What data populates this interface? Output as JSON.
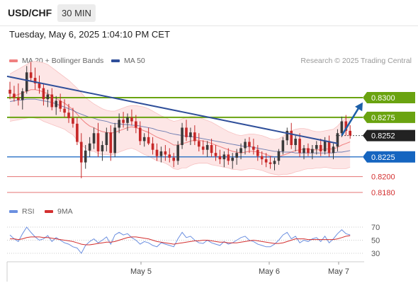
{
  "header": {
    "pair": "USD/CHF",
    "timeframe": "30 MIN",
    "datetime": "Tuesday, May 6, 2025 1:04:10 PM CET"
  },
  "legend": {
    "ma_bb_label": "MA 20 + Bollinger Bands",
    "ma50_label": "MA 50",
    "credit": "Research © 2025 Trading Central",
    "rsi_label": "RSI",
    "rsi9ma_label": "9MA"
  },
  "colors": {
    "up": "#3a3a3a",
    "down": "#c62828",
    "resistance": "#6aa310",
    "support": "#1565c0",
    "trendline": "#2f4f9a",
    "level_red": "#e57373",
    "bb_fill": "#fde6e6",
    "ma20": "#f08080",
    "ma50": "#2f4f9a",
    "rsi": "#6b8fe0",
    "rsi_ma": "#d32f2f"
  },
  "chart_data": {
    "type": "candlestick",
    "symbol": "USD/CHF",
    "interval": "30 MIN",
    "x_labels": [
      "May 5",
      "May 6",
      "May 7"
    ],
    "ylim": [
      0.815,
      0.835
    ],
    "levels": [
      {
        "value": 0.83,
        "label": "0.8300",
        "kind": "resistance"
      },
      {
        "value": 0.8275,
        "label": "0.8275",
        "kind": "resistance"
      },
      {
        "value": 0.8252,
        "label": "0.8252",
        "kind": "last-price"
      },
      {
        "value": 0.8225,
        "label": "0.8225",
        "kind": "pivot"
      },
      {
        "value": 0.82,
        "label": "0.8200",
        "kind": "support"
      },
      {
        "value": 0.818,
        "label": "0.8180",
        "kind": "support"
      }
    ],
    "candles": [
      [
        0.831,
        0.832,
        0.8298,
        0.8305
      ],
      [
        0.8305,
        0.8315,
        0.8295,
        0.83
      ],
      [
        0.83,
        0.8318,
        0.829,
        0.8297
      ],
      [
        0.8297,
        0.8312,
        0.8285,
        0.8308
      ],
      [
        0.8308,
        0.834,
        0.8305,
        0.8332
      ],
      [
        0.8332,
        0.8345,
        0.832,
        0.8325
      ],
      [
        0.8325,
        0.8338,
        0.831,
        0.8318
      ],
      [
        0.8318,
        0.8328,
        0.8305,
        0.8312
      ],
      [
        0.8312,
        0.8318,
        0.829,
        0.8298
      ],
      [
        0.8298,
        0.831,
        0.8288,
        0.8304
      ],
      [
        0.8304,
        0.8312,
        0.8284,
        0.8288
      ],
      [
        0.8288,
        0.8302,
        0.8278,
        0.8296
      ],
      [
        0.8296,
        0.8305,
        0.8282,
        0.8286
      ],
      [
        0.8286,
        0.8298,
        0.8275,
        0.8281
      ],
      [
        0.8281,
        0.8292,
        0.8268,
        0.8274
      ],
      [
        0.8274,
        0.8287,
        0.8262,
        0.8267
      ],
      [
        0.8267,
        0.8275,
        0.824,
        0.8244
      ],
      [
        0.8244,
        0.8255,
        0.8198,
        0.8218
      ],
      [
        0.8218,
        0.824,
        0.821,
        0.8233
      ],
      [
        0.8233,
        0.825,
        0.8225,
        0.8242
      ],
      [
        0.8242,
        0.8262,
        0.8235,
        0.8255
      ],
      [
        0.8255,
        0.8268,
        0.8225,
        0.8232
      ],
      [
        0.8232,
        0.8245,
        0.822,
        0.824
      ],
      [
        0.824,
        0.8262,
        0.8232,
        0.8256
      ],
      [
        0.8256,
        0.8265,
        0.822,
        0.823
      ],
      [
        0.823,
        0.8268,
        0.8225,
        0.8262
      ],
      [
        0.8262,
        0.828,
        0.8255,
        0.8272
      ],
      [
        0.8272,
        0.8282,
        0.8262,
        0.8268
      ],
      [
        0.8268,
        0.828,
        0.8258,
        0.8275
      ],
      [
        0.8275,
        0.8285,
        0.8265,
        0.827
      ],
      [
        0.827,
        0.8278,
        0.8255,
        0.8262
      ],
      [
        0.8262,
        0.827,
        0.824,
        0.8245
      ],
      [
        0.8245,
        0.8255,
        0.8238,
        0.825
      ],
      [
        0.825,
        0.8262,
        0.824,
        0.8242
      ],
      [
        0.8242,
        0.825,
        0.8228,
        0.8234
      ],
      [
        0.8234,
        0.8242,
        0.822,
        0.8226
      ],
      [
        0.8226,
        0.8238,
        0.8218,
        0.8232
      ],
      [
        0.8232,
        0.824,
        0.822,
        0.8228
      ],
      [
        0.8228,
        0.8236,
        0.8218,
        0.8224
      ],
      [
        0.8224,
        0.823,
        0.8212,
        0.822
      ],
      [
        0.822,
        0.8245,
        0.8215,
        0.824
      ],
      [
        0.824,
        0.8268,
        0.8235,
        0.8262
      ],
      [
        0.8262,
        0.8272,
        0.8245,
        0.825
      ],
      [
        0.825,
        0.8262,
        0.824,
        0.8256
      ],
      [
        0.8256,
        0.8265,
        0.824,
        0.8245
      ],
      [
        0.8245,
        0.8255,
        0.8232,
        0.8238
      ],
      [
        0.8238,
        0.8246,
        0.8228,
        0.8234
      ],
      [
        0.8234,
        0.8245,
        0.8225,
        0.824
      ],
      [
        0.824,
        0.8248,
        0.8225,
        0.823
      ],
      [
        0.823,
        0.824,
        0.822,
        0.8226
      ],
      [
        0.8226,
        0.8234,
        0.8216,
        0.8222
      ],
      [
        0.8222,
        0.8232,
        0.8212,
        0.8228
      ],
      [
        0.8228,
        0.8236,
        0.8215,
        0.822
      ],
      [
        0.822,
        0.823,
        0.821,
        0.8224
      ],
      [
        0.8224,
        0.8235,
        0.8215,
        0.823
      ],
      [
        0.823,
        0.8242,
        0.8222,
        0.8236
      ],
      [
        0.8236,
        0.8248,
        0.8228,
        0.8244
      ],
      [
        0.8244,
        0.825,
        0.823,
        0.8238
      ],
      [
        0.8238,
        0.8248,
        0.8228,
        0.8234
      ],
      [
        0.8234,
        0.824,
        0.822,
        0.8226
      ],
      [
        0.8226,
        0.8232,
        0.8215,
        0.8222
      ],
      [
        0.8222,
        0.823,
        0.8212,
        0.8218
      ],
      [
        0.8218,
        0.8226,
        0.821,
        0.8216
      ],
      [
        0.8216,
        0.8224,
        0.8208,
        0.822
      ],
      [
        0.822,
        0.8235,
        0.8215,
        0.8232
      ],
      [
        0.8232,
        0.825,
        0.8228,
        0.8246
      ],
      [
        0.8246,
        0.8262,
        0.824,
        0.8258
      ],
      [
        0.8258,
        0.8268,
        0.8235,
        0.824
      ],
      [
        0.824,
        0.8252,
        0.8232,
        0.8248
      ],
      [
        0.8248,
        0.8255,
        0.8225,
        0.823
      ],
      [
        0.823,
        0.824,
        0.8222,
        0.8236
      ],
      [
        0.8236,
        0.8242,
        0.8226,
        0.823
      ],
      [
        0.823,
        0.824,
        0.8222,
        0.8235
      ],
      [
        0.8235,
        0.8245,
        0.8228,
        0.824
      ],
      [
        0.824,
        0.8248,
        0.8226,
        0.8232
      ],
      [
        0.8232,
        0.825,
        0.8228,
        0.8245
      ],
      [
        0.8245,
        0.8252,
        0.8225,
        0.823
      ],
      [
        0.823,
        0.8242,
        0.8222,
        0.8238
      ],
      [
        0.8238,
        0.826,
        0.8232,
        0.8255
      ],
      [
        0.8255,
        0.8276,
        0.825,
        0.827
      ],
      [
        0.827,
        0.8278,
        0.8252,
        0.8258
      ],
      [
        0.8258,
        0.8265,
        0.8248,
        0.8252
      ]
    ],
    "ma20": [
      0.83,
      0.8302,
      0.8304,
      0.8306,
      0.8308,
      0.831,
      0.831,
      0.8309,
      0.8307,
      0.8305,
      0.8302,
      0.8299,
      0.8296,
      0.8293,
      0.8289,
      0.8285,
      0.8279,
      0.8273,
      0.8268,
      0.8264,
      0.8262,
      0.8259,
      0.8257,
      0.8256,
      0.8255,
      0.8256,
      0.8258,
      0.826,
      0.8262,
      0.8263,
      0.8262,
      0.826,
      0.8258,
      0.8256,
      0.8253,
      0.825,
      0.8248,
      0.8246,
      0.8243,
      0.824,
      0.824,
      0.8242,
      0.8243,
      0.8245,
      0.8246,
      0.8246,
      0.8245,
      0.8244,
      0.8242,
      0.824,
      0.8238,
      0.8236,
      0.8234,
      0.8232,
      0.8231,
      0.823,
      0.8231,
      0.8232,
      0.8232,
      0.8231,
      0.823,
      0.8228,
      0.8226,
      0.8225,
      0.8225,
      0.8227,
      0.8229,
      0.8231,
      0.8233,
      0.8234,
      0.8235,
      0.8235,
      0.8234,
      0.8234,
      0.8234,
      0.8235,
      0.8235,
      0.8235,
      0.8237,
      0.824,
      0.8242,
      0.8244
    ],
    "bb_upper": [
      0.833,
      0.8333,
      0.8336,
      0.8339,
      0.8342,
      0.8345,
      0.8346,
      0.8345,
      0.8344,
      0.8342,
      0.8338,
      0.8334,
      0.833,
      0.8326,
      0.8322,
      0.8317,
      0.8312,
      0.8306,
      0.83,
      0.8296,
      0.8292,
      0.8289,
      0.8286,
      0.8284,
      0.8283,
      0.8283,
      0.8285,
      0.8287,
      0.8289,
      0.829,
      0.829,
      0.8289,
      0.8288,
      0.8286,
      0.8283,
      0.828,
      0.8277,
      0.8275,
      0.8272,
      0.827,
      0.8271,
      0.8273,
      0.8275,
      0.8276,
      0.8276,
      0.8275,
      0.8273,
      0.8271,
      0.8269,
      0.8266,
      0.8263,
      0.826,
      0.8257,
      0.8255,
      0.8253,
      0.8252,
      0.8253,
      0.8254,
      0.8254,
      0.8253,
      0.8252,
      0.825,
      0.8248,
      0.8247,
      0.8248,
      0.8251,
      0.8255,
      0.8258,
      0.826,
      0.8261,
      0.8261,
      0.826,
      0.8258,
      0.8257,
      0.8257,
      0.8258,
      0.8259,
      0.826,
      0.8264,
      0.827,
      0.8274,
      0.8276
    ],
    "bb_lower": [
      0.827,
      0.8271,
      0.8272,
      0.8273,
      0.8274,
      0.8275,
      0.8274,
      0.8273,
      0.827,
      0.8268,
      0.8266,
      0.8264,
      0.8262,
      0.826,
      0.8256,
      0.8253,
      0.8246,
      0.824,
      0.8236,
      0.8232,
      0.8232,
      0.8229,
      0.8228,
      0.8228,
      0.8227,
      0.8229,
      0.8231,
      0.8233,
      0.8235,
      0.8236,
      0.8234,
      0.8231,
      0.8228,
      0.8226,
      0.8223,
      0.822,
      0.8219,
      0.8217,
      0.8214,
      0.821,
      0.8209,
      0.8211,
      0.8211,
      0.8214,
      0.8216,
      0.8217,
      0.8217,
      0.8217,
      0.8215,
      0.8214,
      0.8213,
      0.8212,
      0.8211,
      0.8209,
      0.8209,
      0.8208,
      0.8209,
      0.821,
      0.821,
      0.8209,
      0.8208,
      0.8206,
      0.8204,
      0.8203,
      0.8202,
      0.8203,
      0.8203,
      0.8204,
      0.8206,
      0.8207,
      0.8209,
      0.821,
      0.821,
      0.8211,
      0.8211,
      0.8212,
      0.8211,
      0.821,
      0.821,
      0.821,
      0.821,
      0.8212
    ],
    "ma50": [
      0.8295,
      0.8296,
      0.8297,
      0.8297,
      0.8298,
      0.8298,
      0.8298,
      0.8297,
      0.8296,
      0.8295,
      0.8294,
      0.8292,
      0.829,
      0.8288,
      0.8286,
      0.8284,
      0.8281,
      0.8279,
      0.8277,
      0.8275,
      0.8274,
      0.8272,
      0.8271,
      0.827,
      0.8268,
      0.8267,
      0.8267,
      0.8266,
      0.8266,
      0.8265,
      0.8265,
      0.8264,
      0.8263,
      0.8262,
      0.8261,
      0.8259,
      0.8258,
      0.8257,
      0.8255,
      0.8254,
      0.8253,
      0.8252,
      0.8251,
      0.8251,
      0.825,
      0.8249,
      0.8248,
      0.8247,
      0.8246,
      0.8245,
      0.8244,
      0.8243,
      0.8242,
      0.8241,
      0.824,
      0.8239,
      0.8238,
      0.8238,
      0.8237,
      0.8236,
      0.8235,
      0.8234,
      0.8233,
      0.8232,
      0.8232,
      0.8231,
      0.8231,
      0.8231,
      0.823,
      0.823,
      0.823,
      0.823,
      0.823,
      0.823,
      0.823,
      0.823,
      0.823,
      0.823,
      0.8231,
      0.8231,
      0.8232,
      0.8233
    ],
    "trendline": {
      "start": {
        "index": 0,
        "value": 0.8327
      },
      "end": {
        "index": 78,
        "value": 0.8242
      }
    },
    "projection_arrow": {
      "from": {
        "index": 79,
        "value": 0.8252
      },
      "to": {
        "index": 84,
        "value": 0.8294
      }
    },
    "rsi": {
      "ylim": [
        20,
        80
      ],
      "ticks": [
        70,
        50,
        30
      ],
      "rsi": [
        58,
        52,
        48,
        60,
        70,
        62,
        55,
        50,
        52,
        57,
        48,
        54,
        50,
        46,
        44,
        40,
        38,
        30,
        42,
        48,
        52,
        46,
        50,
        55,
        44,
        58,
        62,
        58,
        60,
        54,
        50,
        44,
        48,
        46,
        42,
        40,
        46,
        44,
        42,
        40,
        52,
        62,
        54,
        56,
        50,
        46,
        45,
        50,
        46,
        44,
        42,
        48,
        44,
        46,
        50,
        54,
        56,
        50,
        48,
        44,
        42,
        40,
        40,
        44,
        50,
        58,
        62,
        52,
        56,
        46,
        50,
        48,
        52,
        54,
        48,
        56,
        46,
        52,
        60,
        66,
        60,
        58
      ],
      "rsi9ma": [
        52,
        52,
        51,
        52,
        54,
        55,
        55,
        55,
        54,
        54,
        53,
        52,
        51,
        50,
        49,
        48,
        46,
        44,
        43,
        43,
        44,
        45,
        46,
        47,
        47,
        48,
        50,
        52,
        54,
        55,
        55,
        54,
        53,
        52,
        50,
        48,
        47,
        46,
        45,
        44,
        45,
        46,
        47,
        48,
        49,
        49,
        50,
        50,
        49,
        48,
        47,
        47,
        46,
        46,
        46,
        47,
        48,
        49,
        50,
        49,
        48,
        47,
        46,
        45,
        45,
        46,
        48,
        50,
        52,
        52,
        52,
        51,
        51,
        51,
        51,
        51,
        51,
        51,
        52,
        54,
        56,
        57
      ]
    }
  }
}
